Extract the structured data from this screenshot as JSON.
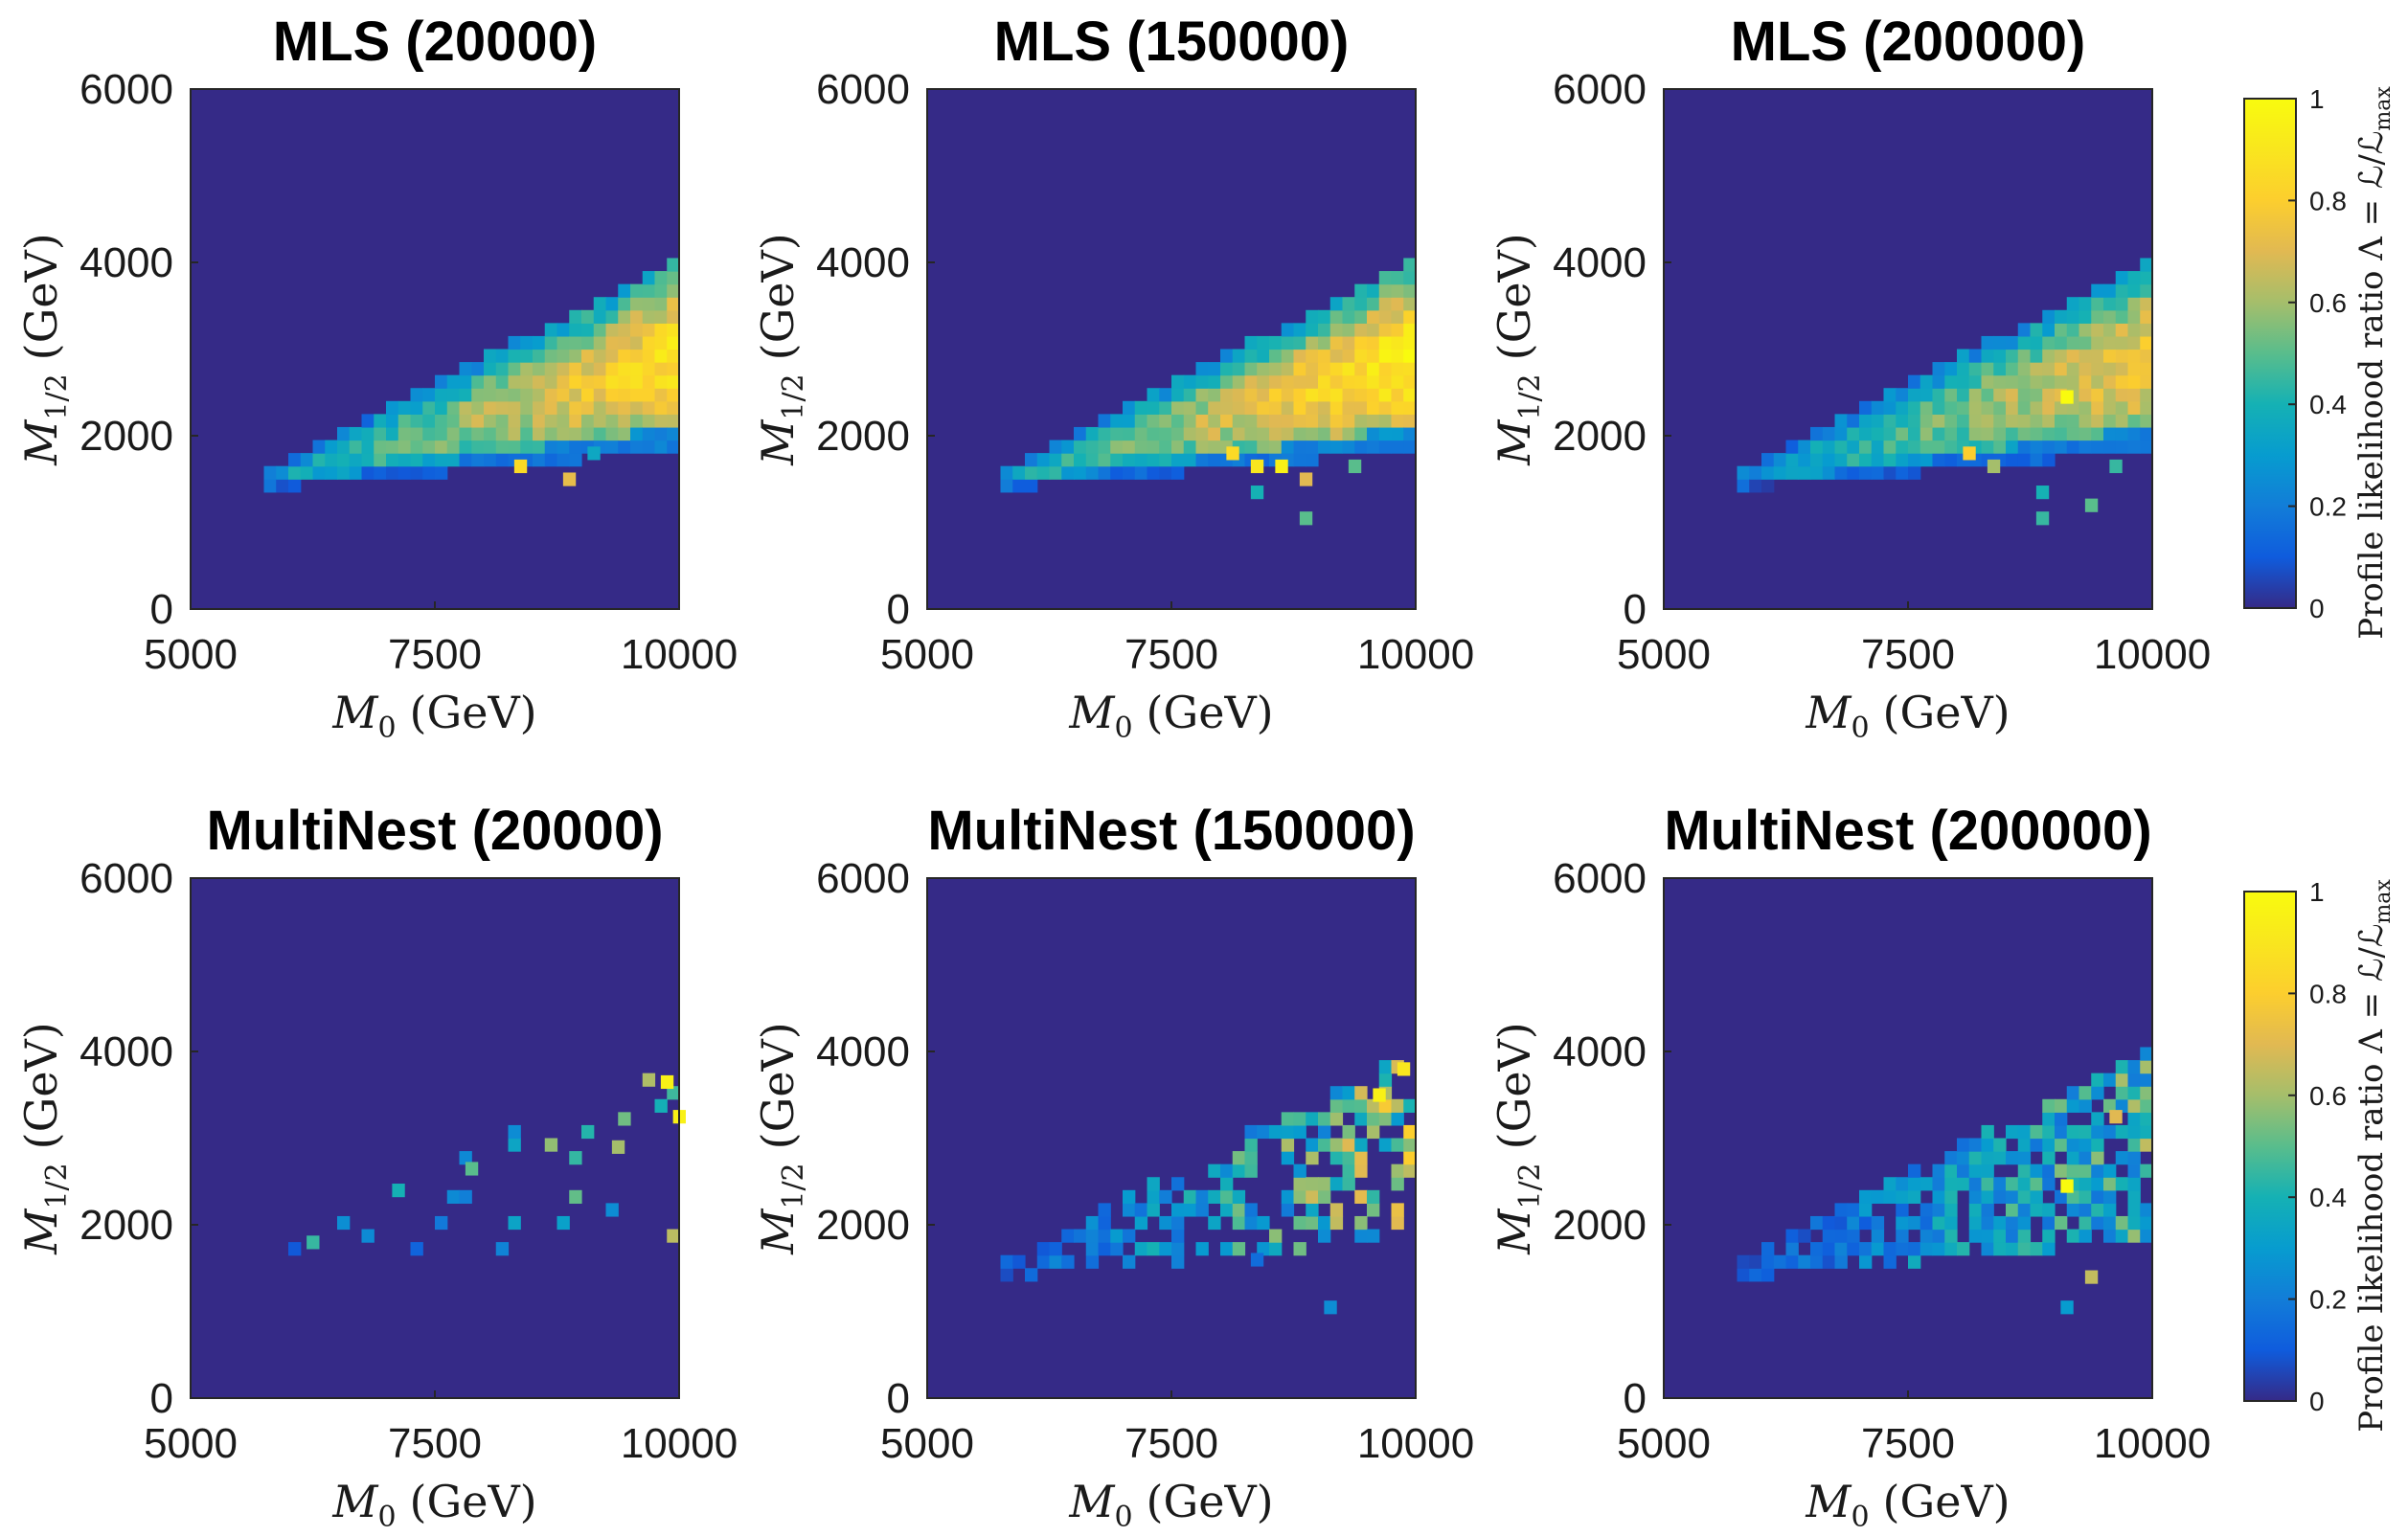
{
  "chart_data": {
    "type": "heatmap",
    "colormap": "parula",
    "background_value": 0,
    "grid_size": 40,
    "xlim": [
      5000,
      10000
    ],
    "ylim": [
      0,
      6000
    ],
    "xticks": [
      "5000",
      "7500",
      "10000"
    ],
    "yticks": [
      "0",
      "2000",
      "4000",
      "6000"
    ],
    "xlabel_var": "M",
    "xlabel_sub": "0",
    "xlabel_unit": "(GeV)",
    "ylabel_var": "M",
    "ylabel_sub": "1/2",
    "ylabel_unit": "(GeV)",
    "colorbar": {
      "label": "Profile likelihood ratio Λ = ℒ/ℒ",
      "label_sub": "max",
      "ticks": [
        "0",
        "0.2",
        "0.4",
        "0.6",
        "0.8",
        "1"
      ],
      "range": [
        0,
        1
      ]
    },
    "panels": [
      {
        "title": "MLS (20000)",
        "fill": "dense",
        "peak": 0.88,
        "seed": 11,
        "outliers": [
          {
            "x": 8375,
            "y": 1650,
            "v": 0.85
          },
          {
            "x": 8875,
            "y": 1500,
            "v": 0.72
          },
          {
            "x": 9125,
            "y": 1800,
            "v": 0.35
          }
        ]
      },
      {
        "title": "MLS (150000)",
        "fill": "dense",
        "peak": 0.95,
        "seed": 23,
        "outliers": [
          {
            "x": 8125,
            "y": 1800,
            "v": 0.85
          },
          {
            "x": 8375,
            "y": 1650,
            "v": 0.9
          },
          {
            "x": 8625,
            "y": 1650,
            "v": 0.95
          },
          {
            "x": 8875,
            "y": 1500,
            "v": 0.7
          },
          {
            "x": 8875,
            "y": 1050,
            "v": 0.5
          },
          {
            "x": 9375,
            "y": 1650,
            "v": 0.5
          },
          {
            "x": 8375,
            "y": 1350,
            "v": 0.4
          }
        ]
      },
      {
        "title": "MLS (200000)",
        "fill": "dense",
        "peak": 0.78,
        "seed": 37,
        "outliers": [
          {
            "x": 9125,
            "y": 2450,
            "v": 1.0
          },
          {
            "x": 8375,
            "y": 1650,
            "v": 0.6
          },
          {
            "x": 8875,
            "y": 1050,
            "v": 0.45
          },
          {
            "x": 9375,
            "y": 1200,
            "v": 0.5
          },
          {
            "x": 9625,
            "y": 1650,
            "v": 0.45
          },
          {
            "x": 8125,
            "y": 1800,
            "v": 0.8
          },
          {
            "x": 8875,
            "y": 1350,
            "v": 0.4
          }
        ]
      },
      {
        "title": "MultiNest (20000)",
        "fill": "sparse",
        "density": 0.09,
        "peak": 0.85,
        "seed": 41,
        "outliers": [
          {
            "x": 9875,
            "y": 3650,
            "v": 0.95
          },
          {
            "x": 10000,
            "y": 3250,
            "v": 0.95
          },
          {
            "x": 9375,
            "y": 2900,
            "v": 0.6
          },
          {
            "x": 6250,
            "y": 1800,
            "v": 0.45
          },
          {
            "x": 7125,
            "y": 2400,
            "v": 0.4
          },
          {
            "x": 7875,
            "y": 2650,
            "v": 0.5
          }
        ]
      },
      {
        "title": "MultiNest (150000)",
        "fill": "medium",
        "density": 0.55,
        "peak": 0.92,
        "seed": 53,
        "outliers": [
          {
            "x": 9125,
            "y": 1050,
            "v": 0.25
          },
          {
            "x": 8375,
            "y": 1600,
            "v": 0.15
          },
          {
            "x": 9625,
            "y": 3500,
            "v": 0.95
          },
          {
            "x": 9875,
            "y": 3800,
            "v": 0.9
          }
        ]
      },
      {
        "title": "MultiNest (200000)",
        "fill": "medium",
        "density": 0.8,
        "peak": 0.75,
        "seed": 67,
        "outliers": [
          {
            "x": 9125,
            "y": 2450,
            "v": 1.0
          },
          {
            "x": 9375,
            "y": 1400,
            "v": 0.65
          },
          {
            "x": 9125,
            "y": 1050,
            "v": 0.3
          },
          {
            "x": 9625,
            "y": 3250,
            "v": 0.7
          }
        ]
      }
    ]
  }
}
